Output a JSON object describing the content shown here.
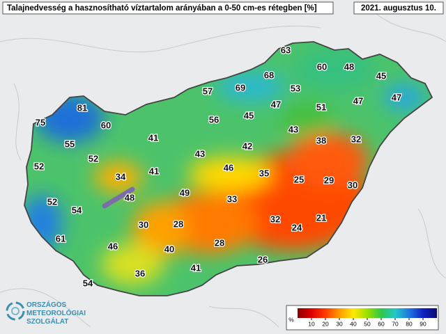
{
  "header": {
    "title": "Talajnedvesség a hasznosítható víztartalom arányában a 0-50 cm-es rétegben [%]",
    "date": "2021. augusztus 10."
  },
  "stations": [
    63,
    60,
    48,
    45,
    68,
    69,
    57,
    53,
    47,
    51,
    47,
    47,
    81,
    75,
    60,
    56,
    45,
    43,
    41,
    55,
    42,
    38,
    32,
    52,
    43,
    52,
    34,
    41,
    46,
    35,
    25,
    29,
    30,
    48,
    49,
    33,
    52,
    54,
    30,
    28,
    32,
    24,
    21,
    61,
    46,
    40,
    28,
    26,
    41,
    36,
    54
  ],
  "colorbar": {
    "unit": "%",
    "lim": [
      0,
      100
    ],
    "ticks": [
      10,
      20,
      30,
      40,
      50,
      60,
      70,
      80,
      90
    ],
    "colors": [
      "#8b0000",
      "#e00000",
      "#ff3a00",
      "#ff9a00",
      "#ffe800",
      "#9be000",
      "#2fc84a",
      "#22c7c7",
      "#1e78e0",
      "#1020c0",
      "#0a0a70"
    ]
  },
  "logo": {
    "line1": "ORSZÁGOS",
    "line2": "METEOROLÓGIAI",
    "line3": "SZOLGÁLAT"
  }
}
